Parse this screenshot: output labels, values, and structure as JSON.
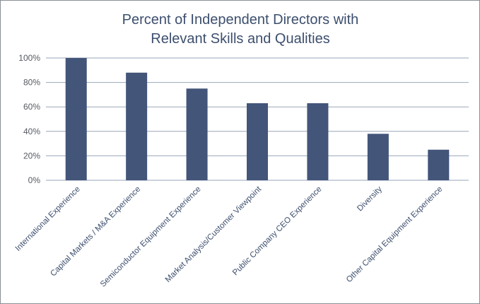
{
  "chart_data": {
    "type": "bar",
    "title_lines": [
      "Percent of Independent Directors with",
      "Relevant Skills and Qualities"
    ],
    "categories": [
      "International Experience",
      "Capital Markets / M&A Experience",
      "Semiconductor Equipment Experience",
      "Market Analysis/Customer Viewpoint",
      "Public Company CEO Experience",
      "Diversity",
      "Other Capital Equipment Experience"
    ],
    "values": [
      100,
      88,
      75,
      63,
      63,
      38,
      25
    ],
    "y_ticks": [
      "0%",
      "20%",
      "40%",
      "60%",
      "80%",
      "100%"
    ],
    "ylim": [
      0,
      100
    ],
    "grid": true,
    "bar_color": "#435579"
  }
}
